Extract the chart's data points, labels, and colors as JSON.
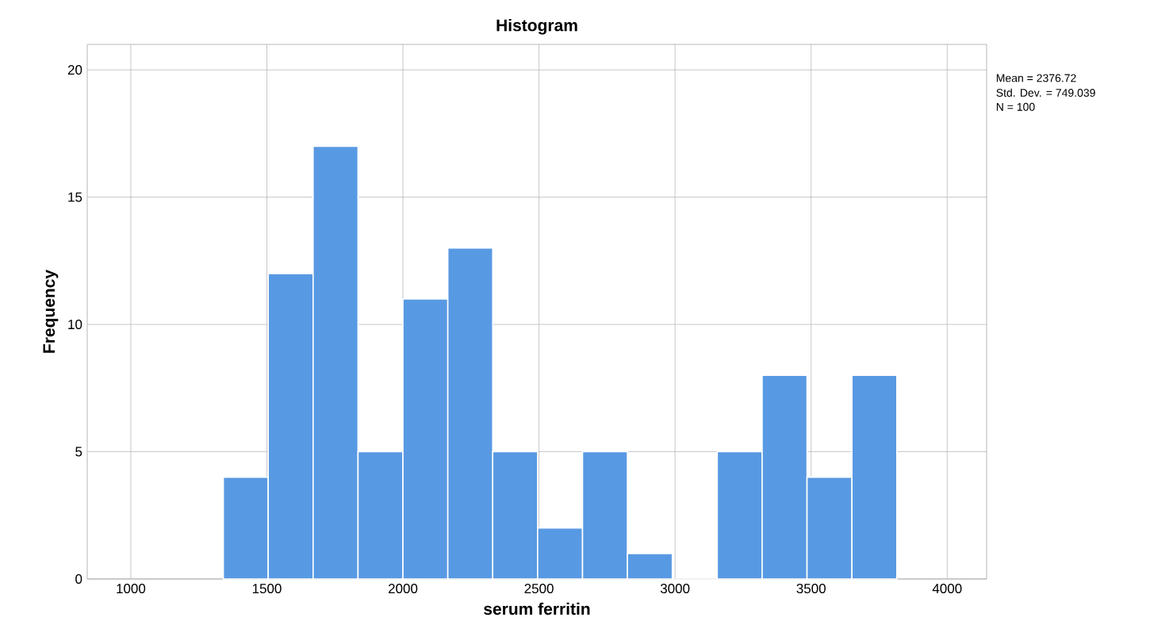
{
  "chart_data": {
    "type": "histogram",
    "title": "Histogram",
    "xlabel": "serum ferritin",
    "ylabel": "Frequency",
    "bins": [
      1340,
      1505,
      1670,
      1835,
      2000,
      2165,
      2330,
      2495,
      2660,
      2825,
      2990,
      3155,
      3320,
      3485,
      3650,
      3815
    ],
    "values": [
      4,
      12,
      17,
      5,
      11,
      13,
      5,
      2,
      5,
      1,
      0,
      5,
      8,
      4,
      8
    ],
    "color": "#5899e3",
    "xlim": [
      840,
      4145
    ],
    "ylim": [
      0,
      21
    ],
    "xticks": [
      1000,
      1500,
      2000,
      2500,
      3000,
      3500,
      4000
    ],
    "yticks": [
      0,
      5,
      10,
      15,
      20
    ],
    "grid": true,
    "annotations": [
      "Mean = 2376.72",
      "Std. Dev. = 749.039",
      "N = 100"
    ]
  }
}
